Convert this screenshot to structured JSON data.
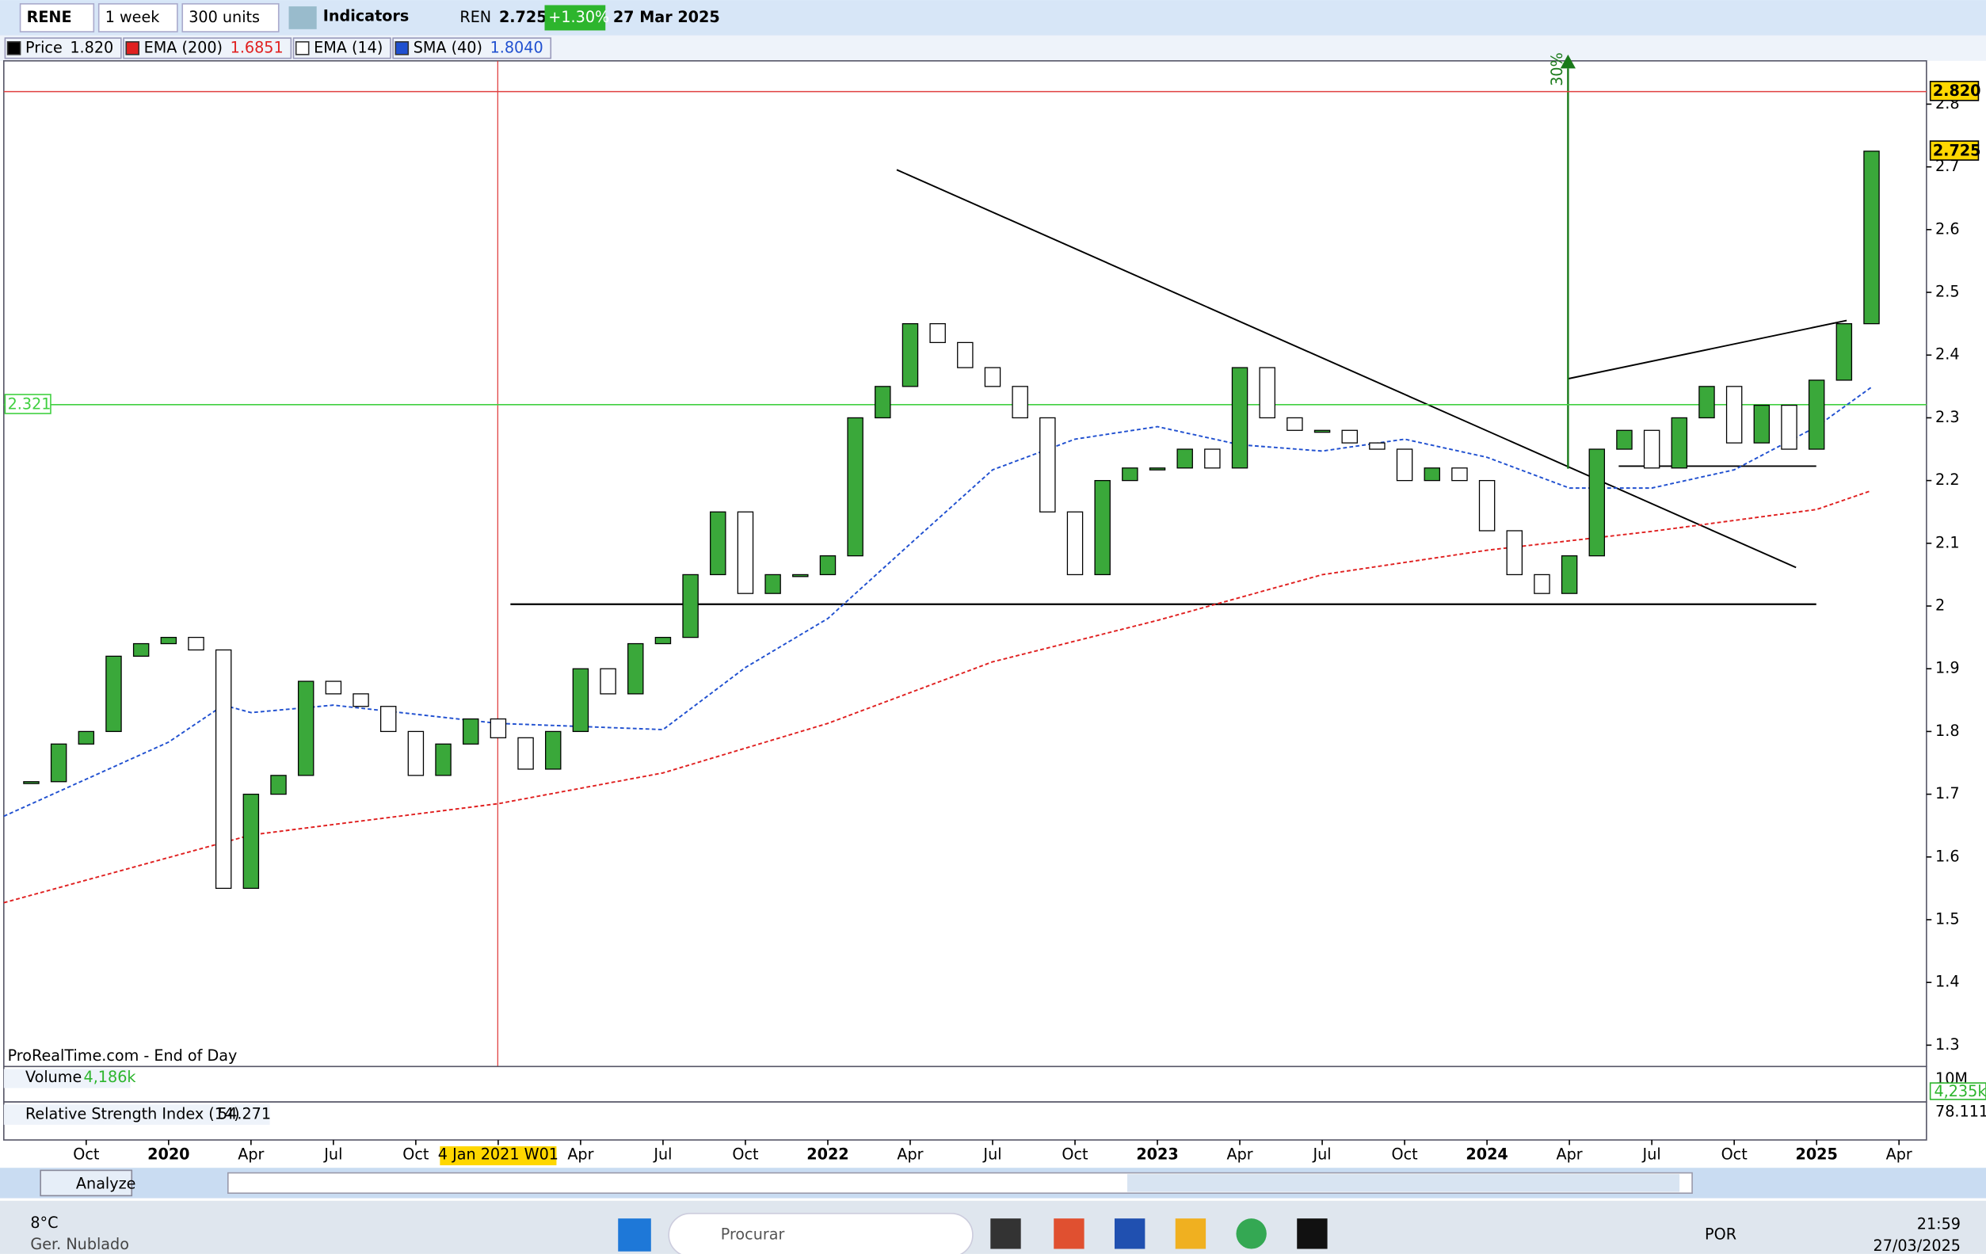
{
  "toolbar": {
    "symbol": "RENE",
    "timeframe": "1 week",
    "units": "300 units",
    "indicators": "Indicators",
    "ticker": "REN",
    "price": "2.725",
    "change": "+1.30%",
    "date": "27 Mar 2025"
  },
  "legend": [
    {
      "name": "Price",
      "value": "1.820",
      "color": "#000000"
    },
    {
      "name": "EMA (200)",
      "value": "1.6851",
      "color": "#e02020"
    },
    {
      "name": "EMA (14)",
      "value": null,
      "color": "#ffffff"
    },
    {
      "name": "SMA (40)",
      "value": "1.8040",
      "color": "#2050d0"
    }
  ],
  "chart_data": {
    "type": "candlestick",
    "x": [
      "2019-08",
      "2019-09",
      "2019-10",
      "2019-11",
      "2019-12",
      "2020-01",
      "2020-02",
      "2020-03",
      "2020-04",
      "2020-05",
      "2020-06",
      "2020-07",
      "2020-08",
      "2020-09",
      "2020-10",
      "2020-11",
      "2020-12",
      "2021-01",
      "2021-02",
      "2021-03",
      "2021-04",
      "2021-05",
      "2021-06",
      "2021-07",
      "2021-08",
      "2021-09",
      "2021-10",
      "2021-11",
      "2021-12",
      "2022-01",
      "2022-02",
      "2022-03",
      "2022-04",
      "2022-05",
      "2022-06",
      "2022-07",
      "2022-08",
      "2022-09",
      "2022-10",
      "2022-11",
      "2022-12",
      "2023-01",
      "2023-02",
      "2023-03",
      "2023-04",
      "2023-05",
      "2023-06",
      "2023-07",
      "2023-08",
      "2023-09",
      "2023-10",
      "2023-11",
      "2023-12",
      "2024-01",
      "2024-02",
      "2024-03",
      "2024-04",
      "2024-05",
      "2024-06",
      "2024-07",
      "2024-08",
      "2024-09",
      "2024-10",
      "2024-11",
      "2024-12",
      "2025-01",
      "2025-02",
      "2025-03"
    ],
    "values": [
      1.72,
      1.78,
      1.8,
      1.92,
      1.94,
      1.95,
      1.93,
      1.55,
      1.7,
      1.73,
      1.88,
      1.86,
      1.84,
      1.8,
      1.73,
      1.78,
      1.82,
      1.79,
      1.74,
      1.8,
      1.9,
      1.86,
      1.94,
      1.95,
      2.05,
      2.15,
      2.02,
      2.05,
      2.05,
      2.08,
      2.3,
      2.35,
      2.45,
      2.42,
      2.38,
      2.35,
      2.3,
      2.15,
      2.05,
      2.2,
      2.22,
      2.22,
      2.25,
      2.22,
      2.38,
      2.3,
      2.28,
      2.28,
      2.26,
      2.25,
      2.2,
      2.22,
      2.2,
      2.12,
      2.05,
      2.02,
      2.08,
      2.25,
      2.28,
      2.22,
      2.3,
      2.35,
      2.26,
      2.32,
      2.25,
      2.36,
      2.45,
      2.725
    ],
    "up_color": "#3aa83a",
    "down_color": "#ffffff",
    "xlim": [
      "2019-07",
      "2025-05"
    ],
    "ylim": [
      1.266,
      2.869
    ],
    "yticks": [
      1.3,
      1.4,
      1.5,
      1.6,
      1.7,
      1.8,
      1.9,
      2,
      2.1,
      2.2,
      2.3,
      2.4,
      2.5,
      2.6,
      2.7,
      2.8
    ],
    "xticks": [
      {
        "value": "2019-10",
        "label": "Oct"
      },
      {
        "value": "2020-01",
        "label": "2020"
      },
      {
        "value": "2020-04",
        "label": "Apr"
      },
      {
        "value": "2020-07",
        "label": "Jul"
      },
      {
        "value": "2020-10",
        "label": "Oct"
      },
      {
        "value": "2021-01",
        "label": "4 Jan 2021 W01"
      },
      {
        "value": "2021-04",
        "label": "Apr"
      },
      {
        "value": "2021-07",
        "label": "Jul"
      },
      {
        "value": "2021-10",
        "label": "Oct"
      },
      {
        "value": "2022-01",
        "label": "2022"
      },
      {
        "value": "2022-04",
        "label": "Apr"
      },
      {
        "value": "2022-07",
        "label": "Jul"
      },
      {
        "value": "2022-10",
        "label": "Oct"
      },
      {
        "value": "2023-01",
        "label": "2023"
      },
      {
        "value": "2023-04",
        "label": "Apr"
      },
      {
        "value": "2023-07",
        "label": "Jul"
      },
      {
        "value": "2023-10",
        "label": "Oct"
      },
      {
        "value": "2024-01",
        "label": "2024"
      },
      {
        "value": "2024-04",
        "label": "Apr"
      },
      {
        "value": "2024-07",
        "label": "Jul"
      },
      {
        "value": "2024-10",
        "label": "Oct"
      },
      {
        "value": "2025-01",
        "label": "2025"
      },
      {
        "value": "2025-04",
        "label": "Apr"
      }
    ],
    "series": [
      {
        "name": "EMA (200)",
        "color": "#e02020",
        "x": [
          "2019-07",
          "2020-04",
          "2021-01",
          "2021-07",
          "2022-01",
          "2022-07",
          "2023-01",
          "2023-07",
          "2024-01",
          "2024-07",
          "2025-01",
          "2025-03"
        ],
        "values": [
          1.527,
          1.635,
          1.685,
          1.734,
          1.813,
          1.911,
          1.977,
          2.05,
          2.089,
          2.119,
          2.154,
          2.184
        ]
      },
      {
        "name": "SMA (40)",
        "color": "#2050d0",
        "x": [
          "2019-07",
          "2020-01",
          "2020-03",
          "2020-04",
          "2020-07",
          "2021-01",
          "2021-07",
          "2021-10",
          "2022-01",
          "2022-04",
          "2022-07",
          "2022-10",
          "2023-01",
          "2023-04",
          "2023-07",
          "2023-10",
          "2024-01",
          "2024-04",
          "2024-07",
          "2024-10",
          "2025-01",
          "2025-03"
        ],
        "values": [
          1.665,
          1.783,
          1.842,
          1.83,
          1.842,
          1.813,
          1.803,
          1.902,
          1.98,
          2.099,
          2.217,
          2.266,
          2.286,
          2.257,
          2.247,
          2.266,
          2.237,
          2.188,
          2.188,
          2.217,
          2.286,
          2.349
        ]
      }
    ],
    "hlines": [
      {
        "value": 2.321,
        "label": "2.321",
        "color": "#40d040",
        "side": "left"
      },
      {
        "value": 2.82,
        "label": "2.820",
        "color": "#e04040",
        "side": "right"
      }
    ],
    "last_price": {
      "value": 2.725,
      "label": "2.725"
    },
    "annotation": "30%",
    "source": "ProRealTime.com - End of Day"
  },
  "volume": {
    "name": "Volume",
    "value": "4,186k",
    "scale": "10M",
    "last": "4,235k"
  },
  "rsi": {
    "name": "Relative Strength Index (14)",
    "value": "54.271",
    "last": "78.111"
  },
  "bottom_bar": {
    "analyze": "Analyze"
  },
  "taskbar": {
    "temp": "8°C",
    "weather": "Ger. Nublado",
    "search": "Procurar",
    "lang": "POR",
    "time": "21:59",
    "date": "27/03/2025"
  }
}
